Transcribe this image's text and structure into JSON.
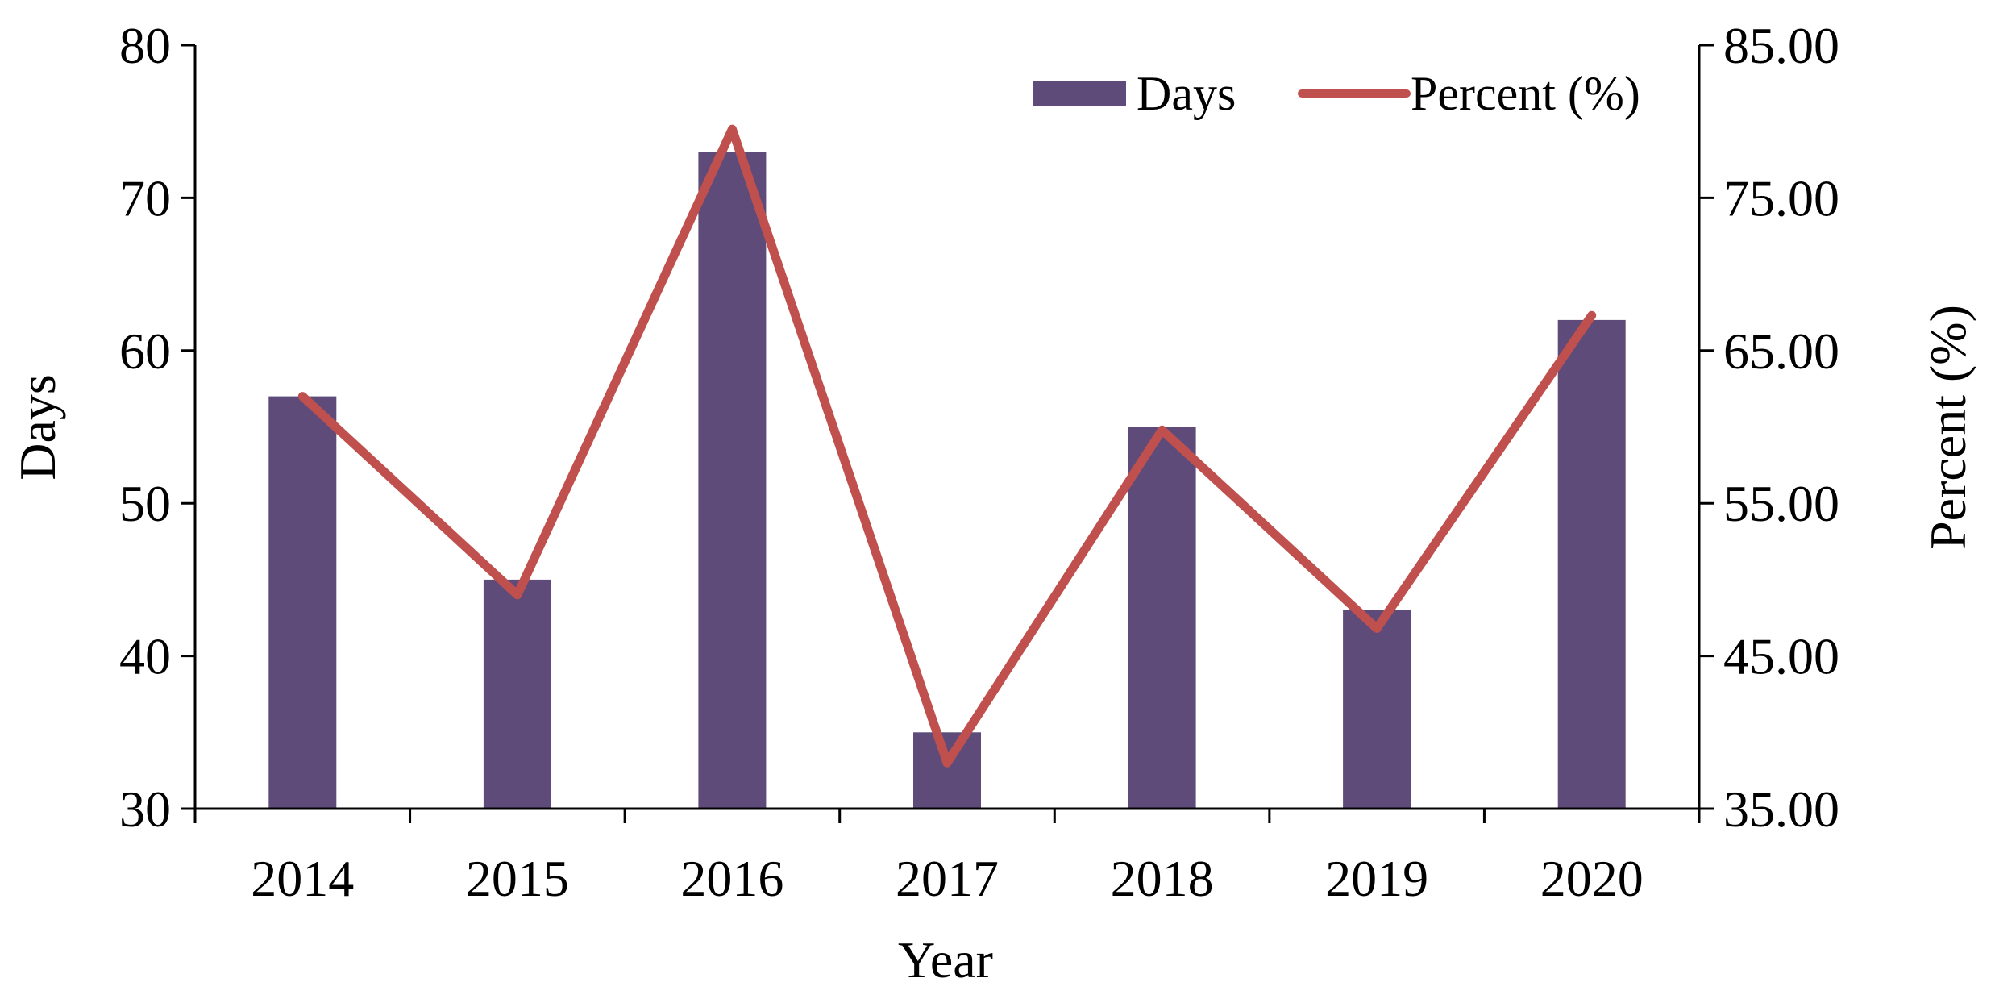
{
  "chart_data": {
    "type": "bar",
    "title": "",
    "xlabel": "Year",
    "ylabel": "Days",
    "y2label": "Percent (%)",
    "categories": [
      "2014",
      "2015",
      "2016",
      "2017",
      "2018",
      "2019",
      "2020"
    ],
    "series": [
      {
        "name": "Days",
        "type": "bar",
        "axis": "left",
        "color": "#5f4b7a",
        "values": [
          57,
          45,
          73,
          35,
          55,
          43,
          62
        ]
      },
      {
        "name": "Percent (%)",
        "type": "line",
        "axis": "right",
        "color": "#c0504d",
        "values": [
          62.0,
          49.0,
          79.5,
          38.0,
          59.8,
          46.8,
          67.3
        ]
      }
    ],
    "ylim": [
      30,
      80
    ],
    "yticks": [
      "30",
      "40",
      "50",
      "60",
      "70",
      "80"
    ],
    "y2lim": [
      35,
      85
    ],
    "y2ticks": [
      "35.00",
      "45.00",
      "55.00",
      "65.00",
      "75.00",
      "85.00"
    ],
    "legend_position": "top-right",
    "grid": false
  }
}
